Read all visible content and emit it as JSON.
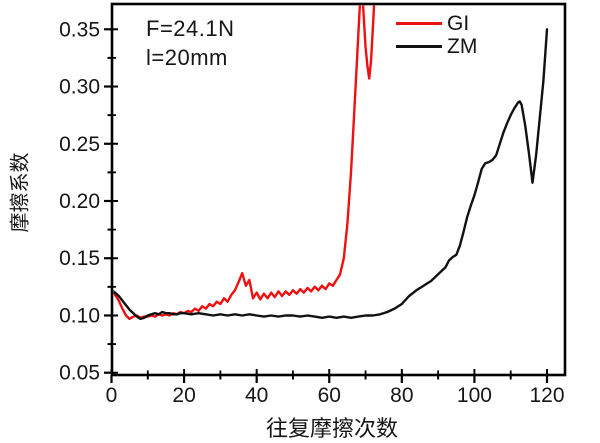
{
  "chart_data": {
    "type": "line",
    "title": "",
    "xlabel": "往复摩擦次数",
    "ylabel": "摩擦系数",
    "grid": false,
    "xlim": [
      0,
      125
    ],
    "ylim": [
      0.05,
      0.373
    ],
    "x_axis": {
      "major": [
        0,
        20,
        40,
        60,
        80,
        100,
        120
      ],
      "major_labels": [
        "0",
        "20",
        "40",
        "60",
        "80",
        "100",
        "120"
      ],
      "minor": [
        10,
        30,
        50,
        70,
        90,
        110
      ]
    },
    "y_axis": {
      "major": [
        0.05,
        0.1,
        0.15,
        0.2,
        0.25,
        0.3,
        0.35
      ],
      "major_labels": [
        "0.05",
        "0.10",
        "0.15",
        "0.20",
        "0.25",
        "0.30",
        "0.35"
      ],
      "minor": [
        0.075,
        0.125,
        0.175,
        0.225,
        0.275,
        0.325
      ]
    },
    "annotations": [
      "F=24.1N",
      "l=20mm"
    ],
    "legend": {
      "position": "top-right",
      "entries": [
        {
          "name": "GI",
          "color": "#ee1111"
        },
        {
          "name": "ZM",
          "color": "#111111"
        }
      ]
    },
    "series": [
      {
        "name": "GI",
        "color": "#ee1111",
        "points": [
          [
            0,
            0.121
          ],
          [
            1,
            0.118
          ],
          [
            2,
            0.113
          ],
          [
            3,
            0.106
          ],
          [
            4,
            0.1
          ],
          [
            5,
            0.097
          ],
          [
            6,
            0.099
          ],
          [
            7,
            0.1
          ],
          [
            8,
            0.098
          ],
          [
            9,
            0.099
          ],
          [
            10,
            0.099
          ],
          [
            11,
            0.1
          ],
          [
            12,
            0.099
          ],
          [
            13,
            0.101
          ],
          [
            14,
            0.1
          ],
          [
            15,
            0.101
          ],
          [
            16,
            0.1
          ],
          [
            17,
            0.102
          ],
          [
            18,
            0.101
          ],
          [
            19,
            0.103
          ],
          [
            20,
            0.102
          ],
          [
            21,
            0.104
          ],
          [
            22,
            0.103
          ],
          [
            23,
            0.106
          ],
          [
            24,
            0.104
          ],
          [
            25,
            0.108
          ],
          [
            26,
            0.106
          ],
          [
            27,
            0.11
          ],
          [
            28,
            0.108
          ],
          [
            29,
            0.112
          ],
          [
            30,
            0.11
          ],
          [
            31,
            0.115
          ],
          [
            32,
            0.112
          ],
          [
            33,
            0.118
          ],
          [
            34,
            0.122
          ],
          [
            35,
            0.129
          ],
          [
            36,
            0.137
          ],
          [
            37,
            0.126
          ],
          [
            38,
            0.131
          ],
          [
            39,
            0.115
          ],
          [
            40,
            0.12
          ],
          [
            41,
            0.114
          ],
          [
            42,
            0.119
          ],
          [
            43,
            0.115
          ],
          [
            44,
            0.12
          ],
          [
            45,
            0.116
          ],
          [
            46,
            0.121
          ],
          [
            47,
            0.117
          ],
          [
            48,
            0.121
          ],
          [
            49,
            0.118
          ],
          [
            50,
            0.122
          ],
          [
            51,
            0.119
          ],
          [
            52,
            0.123
          ],
          [
            53,
            0.12
          ],
          [
            54,
            0.124
          ],
          [
            55,
            0.121
          ],
          [
            56,
            0.125
          ],
          [
            57,
            0.122
          ],
          [
            58,
            0.126
          ],
          [
            59,
            0.123
          ],
          [
            60,
            0.128
          ],
          [
            61,
            0.126
          ],
          [
            62,
            0.131
          ],
          [
            63,
            0.136
          ],
          [
            64,
            0.15
          ],
          [
            65,
            0.18
          ],
          [
            66,
            0.225
          ],
          [
            67,
            0.285
          ],
          [
            68,
            0.345
          ],
          [
            68.5,
            0.375
          ],
          [
            69.2,
            0.378
          ],
          [
            70,
            0.335
          ],
          [
            70.5,
            0.318
          ],
          [
            71,
            0.307
          ],
          [
            71.5,
            0.322
          ],
          [
            72,
            0.35
          ],
          [
            72.5,
            0.38
          ]
        ]
      },
      {
        "name": "ZM",
        "color": "#111111",
        "points": [
          [
            0,
            0.122
          ],
          [
            1,
            0.12
          ],
          [
            2,
            0.117
          ],
          [
            3,
            0.113
          ],
          [
            4,
            0.109
          ],
          [
            5,
            0.105
          ],
          [
            6,
            0.102
          ],
          [
            7,
            0.099
          ],
          [
            8,
            0.097
          ],
          [
            9,
            0.098
          ],
          [
            10,
            0.1
          ],
          [
            11,
            0.101
          ],
          [
            12,
            0.102
          ],
          [
            13,
            0.101
          ],
          [
            14,
            0.103
          ],
          [
            15,
            0.102
          ],
          [
            16,
            0.102
          ],
          [
            17,
            0.101
          ],
          [
            18,
            0.101
          ],
          [
            19,
            0.102
          ],
          [
            20,
            0.102
          ],
          [
            22,
            0.101
          ],
          [
            24,
            0.102
          ],
          [
            26,
            0.101
          ],
          [
            28,
            0.1
          ],
          [
            30,
            0.101
          ],
          [
            32,
            0.1
          ],
          [
            34,
            0.101
          ],
          [
            36,
            0.1
          ],
          [
            38,
            0.101
          ],
          [
            40,
            0.1
          ],
          [
            42,
            0.099
          ],
          [
            44,
            0.1
          ],
          [
            46,
            0.099
          ],
          [
            48,
            0.1
          ],
          [
            50,
            0.1
          ],
          [
            52,
            0.099
          ],
          [
            54,
            0.1
          ],
          [
            56,
            0.099
          ],
          [
            58,
            0.098
          ],
          [
            60,
            0.099
          ],
          [
            62,
            0.098
          ],
          [
            64,
            0.099
          ],
          [
            66,
            0.098
          ],
          [
            68,
            0.099
          ],
          [
            70,
            0.1
          ],
          [
            72,
            0.1
          ],
          [
            74,
            0.101
          ],
          [
            76,
            0.103
          ],
          [
            78,
            0.106
          ],
          [
            80,
            0.11
          ],
          [
            82,
            0.117
          ],
          [
            84,
            0.122
          ],
          [
            85,
            0.124
          ],
          [
            86,
            0.126
          ],
          [
            87,
            0.128
          ],
          [
            88,
            0.13
          ],
          [
            89,
            0.133
          ],
          [
            90,
            0.136
          ],
          [
            91,
            0.139
          ],
          [
            92,
            0.142
          ],
          [
            93,
            0.148
          ],
          [
            94,
            0.151
          ],
          [
            95,
            0.153
          ],
          [
            96,
            0.161
          ],
          [
            97,
            0.173
          ],
          [
            98,
            0.186
          ],
          [
            99,
            0.196
          ],
          [
            100,
            0.205
          ],
          [
            101,
            0.216
          ],
          [
            102,
            0.228
          ],
          [
            103,
            0.233
          ],
          [
            104,
            0.234
          ],
          [
            105,
            0.236
          ],
          [
            106,
            0.24
          ],
          [
            107,
            0.25
          ],
          [
            108,
            0.26
          ],
          [
            109,
            0.268
          ],
          [
            110,
            0.275
          ],
          [
            111,
            0.281
          ],
          [
            112,
            0.286
          ],
          [
            112.5,
            0.287
          ],
          [
            113,
            0.284
          ],
          [
            114,
            0.266
          ],
          [
            115,
            0.242
          ],
          [
            116,
            0.216
          ],
          [
            117,
            0.24
          ],
          [
            118,
            0.272
          ],
          [
            119,
            0.305
          ],
          [
            120,
            0.35
          ]
        ]
      }
    ]
  }
}
